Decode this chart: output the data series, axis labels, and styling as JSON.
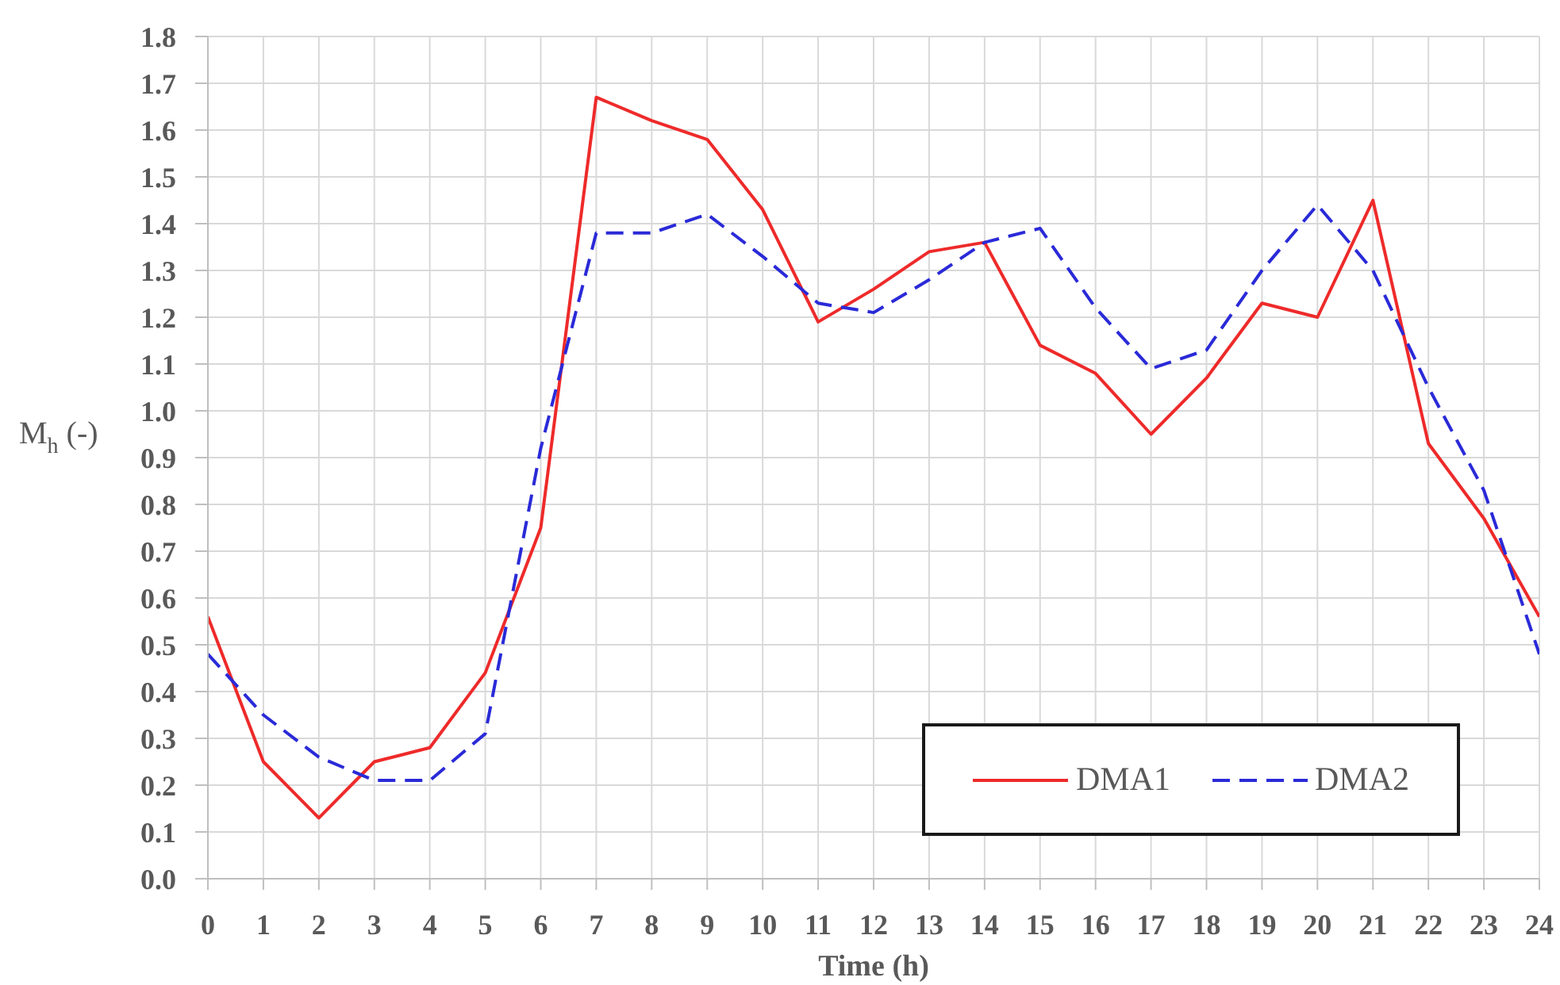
{
  "chart_data": {
    "type": "line",
    "xlabel": "Time (h)",
    "ylabel": "M$_{h}$ (-)",
    "x": [
      0,
      1,
      2,
      3,
      4,
      5,
      6,
      7,
      8,
      9,
      10,
      11,
      12,
      13,
      14,
      15,
      16,
      17,
      18,
      19,
      20,
      21,
      22,
      23,
      24
    ],
    "xlim": [
      0,
      24
    ],
    "xticks": [
      0,
      1,
      2,
      3,
      4,
      5,
      6,
      7,
      8,
      9,
      10,
      11,
      12,
      13,
      14,
      15,
      16,
      17,
      18,
      19,
      20,
      21,
      22,
      23,
      24
    ],
    "ylim": [
      0,
      1.8
    ],
    "yticks": [
      {
        "value": 0,
        "label": "0.0"
      },
      0.1,
      0.2,
      0.3,
      0.4,
      0.5,
      0.6,
      0.7,
      0.8,
      0.9,
      {
        "value": 1,
        "label": "1.0"
      },
      1.1,
      1.2,
      1.3,
      1.4,
      1.5,
      1.6,
      1.7,
      1.8
    ],
    "grid": true,
    "legend": "bottom right",
    "series": [
      {
        "name": "DMA1",
        "color": "#ee2a2a",
        "line_style": "solid",
        "values": [
          0.56,
          0.25,
          0.13,
          0.25,
          0.28,
          0.44,
          0.75,
          1.67,
          1.62,
          1.58,
          1.43,
          1.19,
          1.26,
          1.34,
          1.36,
          1.14,
          1.08,
          0.95,
          1.07,
          1.23,
          1.2,
          1.45,
          0.93,
          0.77,
          0.56
        ]
      },
      {
        "name": "DMA2",
        "color": "#2a2ad8",
        "line_style": "dashed",
        "values": [
          0.48,
          0.35,
          0.26,
          0.21,
          0.21,
          0.31,
          0.92,
          1.38,
          1.38,
          1.42,
          1.33,
          1.23,
          1.21,
          1.28,
          1.36,
          1.39,
          1.22,
          1.09,
          1.13,
          1.3,
          1.44,
          1.3,
          1.05,
          0.83,
          0.48
        ]
      }
    ]
  }
}
